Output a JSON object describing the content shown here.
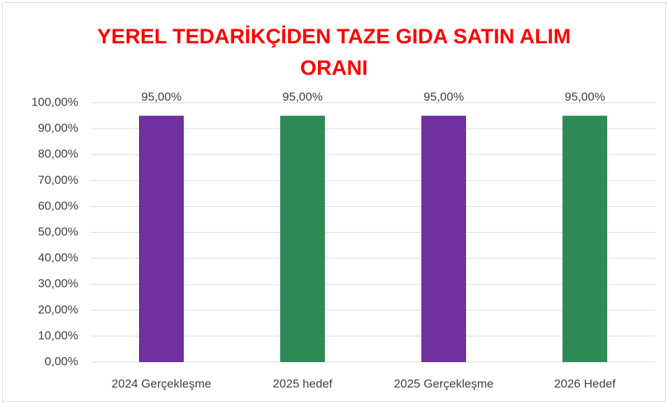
{
  "chart_data": {
    "type": "bar",
    "title": "YEREL TEDARİKÇİDEN TAZE GIDA SATIN ALIM ORANI",
    "categories": [
      "2024 Gerçekleşme",
      "2025 hedef",
      "2025 Gerçekleşme",
      "2026 Hedef"
    ],
    "values": [
      95,
      95,
      95,
      95
    ],
    "value_labels": [
      "95,00%",
      "95,00%",
      "95,00%",
      "95,00%"
    ],
    "colors": [
      "#7030a0",
      "#2e8b57",
      "#7030a0",
      "#2e8b57"
    ],
    "ylim": [
      0,
      100
    ],
    "yticks": [
      {
        "value": 0,
        "label": "0,00%"
      },
      {
        "value": 10,
        "label": "10,00%"
      },
      {
        "value": 20,
        "label": "20,00%"
      },
      {
        "value": 30,
        "label": "30,00%"
      },
      {
        "value": 40,
        "label": "40,00%"
      },
      {
        "value": 50,
        "label": "50,00%"
      },
      {
        "value": 60,
        "label": "60,00%"
      },
      {
        "value": 70,
        "label": "70,00%"
      },
      {
        "value": 80,
        "label": "80,00%"
      },
      {
        "value": 90,
        "label": "90,00%"
      },
      {
        "value": 100,
        "label": "100,00%"
      }
    ],
    "grid": true
  }
}
